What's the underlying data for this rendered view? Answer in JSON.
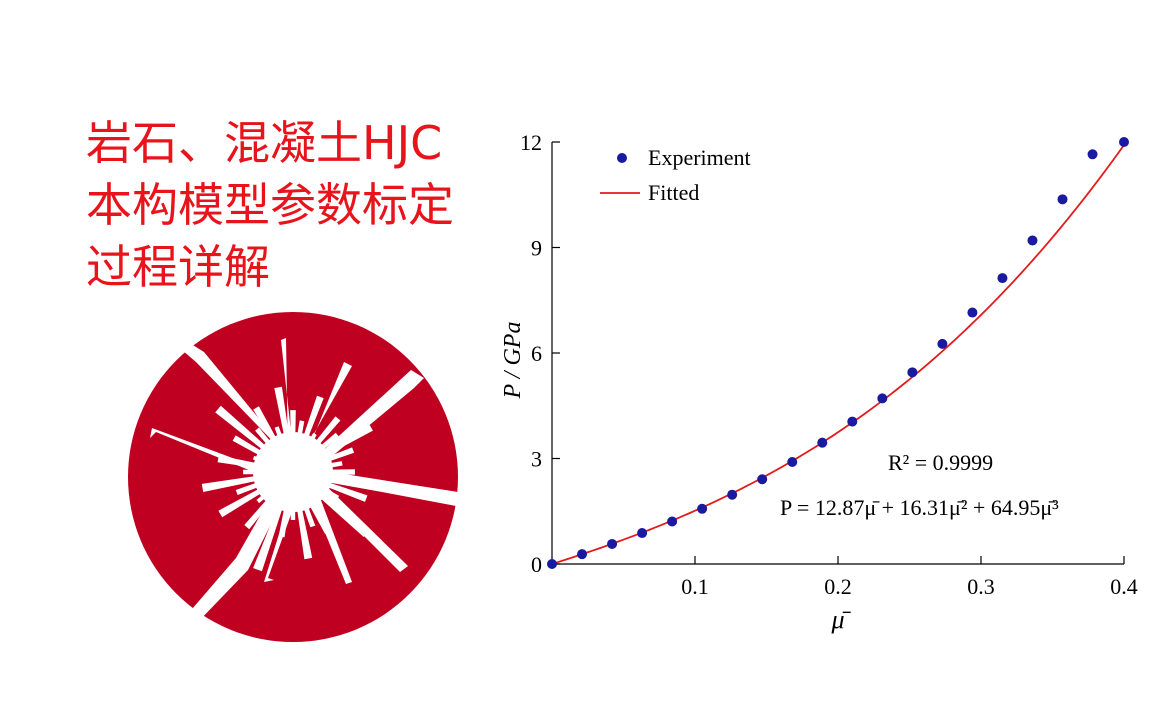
{
  "title": {
    "lines": [
      "岩石、混凝土HJC",
      "本构模型参数标定",
      "过程详解"
    ],
    "color": "#e8141c"
  },
  "disc": {
    "color": "#c00020"
  },
  "chart_data": {
    "type": "scatter",
    "xlabel": "μ̄",
    "ylabel": "P / GPa",
    "xlim": [
      0,
      0.4
    ],
    "ylim": [
      0,
      12
    ],
    "x_ticks": [
      "0.1",
      "0.2",
      "0.3",
      "0.4"
    ],
    "y_ticks": [
      "0",
      "3",
      "6",
      "9",
      "12"
    ],
    "legend": {
      "position": "top-left",
      "entries": [
        "Experiment",
        "Fitted"
      ]
    },
    "annotations": {
      "r2": "R² = 0.9999",
      "equation": "P = 12.87μ̄ + 16.31μ̄² + 64.95μ̄³"
    },
    "series": [
      {
        "name": "Experiment",
        "kind": "points",
        "color": "#1a1aa0",
        "x": [
          0.0,
          0.021,
          0.042,
          0.063,
          0.084,
          0.105,
          0.126,
          0.147,
          0.168,
          0.189,
          0.21,
          0.231,
          0.252,
          0.273,
          0.294,
          0.315,
          0.336,
          0.357,
          0.378,
          0.4
        ],
        "y": [
          0.0,
          0.28,
          0.57,
          0.88,
          1.21,
          1.57,
          1.97,
          2.41,
          2.9,
          3.45,
          4.05,
          4.71,
          5.45,
          6.26,
          7.15,
          8.13,
          9.2,
          10.37,
          11.65,
          12.0
        ]
      },
      {
        "name": "Fitted",
        "kind": "curve",
        "color": "#e41a1c",
        "coefficients": [
          12.87,
          16.31,
          64.95
        ]
      }
    ]
  }
}
